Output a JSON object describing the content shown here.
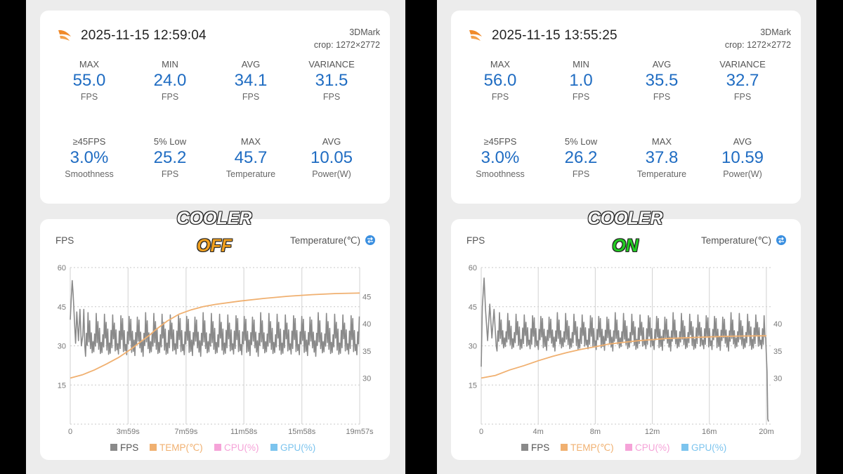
{
  "colors": {
    "value_blue": "#1f6cc2",
    "fps_line": "#8a8a8a",
    "temp_line": "#f0b070",
    "cpu": "#f5a3d8",
    "gpu": "#7cc4ee",
    "off": "#f0a020",
    "on": "#22cc22"
  },
  "panels": [
    {
      "timestamp": "2025-11-15 12:59:04",
      "source": "3DMark",
      "crop": "crop: 1272×2772",
      "stats": [
        {
          "label": "MAX",
          "value": "55.0",
          "unit": "FPS"
        },
        {
          "label": "MIN",
          "value": "24.0",
          "unit": "FPS"
        },
        {
          "label": "AVG",
          "value": "34.1",
          "unit": "FPS"
        },
        {
          "label": "VARIANCE",
          "value": "31.5",
          "unit": "FPS"
        },
        {
          "label": "≥45FPS",
          "value": "3.0%",
          "unit": "Smoothness"
        },
        {
          "label": "5% Low",
          "value": "25.2",
          "unit": "FPS"
        },
        {
          "label": "MAX",
          "value": "45.7",
          "unit": "Temperature"
        },
        {
          "label": "AVG",
          "value": "10.05",
          "unit": "Power(W)"
        }
      ],
      "overlay_title": "COOLER",
      "overlay_state": "OFF",
      "overlay_color": "#f0a020"
    },
    {
      "timestamp": "2025-11-15 13:55:25",
      "source": "3DMark",
      "crop": "crop: 1272×2772",
      "stats": [
        {
          "label": "MAX",
          "value": "56.0",
          "unit": "FPS"
        },
        {
          "label": "MIN",
          "value": "1.0",
          "unit": "FPS"
        },
        {
          "label": "AVG",
          "value": "35.5",
          "unit": "FPS"
        },
        {
          "label": "VARIANCE",
          "value": "32.7",
          "unit": "FPS"
        },
        {
          "label": "≥45FPS",
          "value": "3.0%",
          "unit": "Smoothness"
        },
        {
          "label": "5% Low",
          "value": "26.2",
          "unit": "FPS"
        },
        {
          "label": "MAX",
          "value": "37.8",
          "unit": "Temperature"
        },
        {
          "label": "AVG",
          "value": "10.59",
          "unit": "Power(W)"
        }
      ],
      "overlay_title": "COOLER",
      "overlay_state": "ON",
      "overlay_color": "#22cc22"
    }
  ],
  "chart_data": [
    {
      "type": "line",
      "title": "",
      "ylabel": "FPS",
      "y2label": "Temperature(℃)",
      "ylim": [
        0,
        60
      ],
      "yticks": [
        0,
        15,
        30,
        45,
        60
      ],
      "y2ticks": [
        30,
        35,
        40,
        45
      ],
      "y2lim": [
        21.5,
        50.4
      ],
      "xlim": [
        0,
        1197
      ],
      "xticks": [
        0,
        239,
        479,
        718,
        958,
        1197
      ],
      "xtick_labels": [
        "0",
        "3m59s",
        "7m59s",
        "11m58s",
        "15m58s",
        "19m57s"
      ],
      "legend": [
        "FPS",
        "TEMP(℃)",
        "CPU(%)",
        "GPU(%)"
      ],
      "series": [
        {
          "name": "FPS",
          "period": 34,
          "start_points": [
            [
              0,
              40
            ],
            [
              4,
              48
            ],
            [
              8,
              55
            ],
            [
              12,
              50
            ],
            [
              17,
              40
            ],
            [
              22,
              31
            ],
            [
              27,
              43
            ],
            [
              34,
              32
            ],
            [
              40,
              44
            ],
            [
              46,
              30
            ],
            [
              52,
              34
            ],
            [
              56,
              44
            ],
            [
              60,
              30
            ]
          ],
          "steady_low": 27,
          "steady_high": 42
        },
        {
          "name": "TEMP(℃)",
          "points": [
            [
              0,
              30
            ],
            [
              50,
              30.6
            ],
            [
              100,
              31.5
            ],
            [
              150,
              32.6
            ],
            [
              200,
              33.8
            ],
            [
              250,
              35.3
            ],
            [
              300,
              37
            ],
            [
              330,
              38
            ],
            [
              350,
              38.8
            ],
            [
              400,
              40.5
            ],
            [
              450,
              41.8
            ],
            [
              500,
              42.6
            ],
            [
              550,
              43.2
            ],
            [
              600,
              43.6
            ],
            [
              700,
              44.2
            ],
            [
              800,
              44.7
            ],
            [
              900,
              45.1
            ],
            [
              1000,
              45.4
            ],
            [
              1100,
              45.6
            ],
            [
              1197,
              45.7
            ]
          ]
        }
      ]
    },
    {
      "type": "line",
      "title": "",
      "ylabel": "FPS",
      "y2label": "Temperature(℃)",
      "ylim": [
        0,
        60
      ],
      "yticks": [
        0,
        15,
        30,
        45,
        60
      ],
      "y2ticks": [
        30,
        35,
        40
      ],
      "y2lim": [
        21.5,
        50.4
      ],
      "xlim": [
        0,
        20.3
      ],
      "xticks": [
        0,
        4,
        8,
        12,
        16,
        20
      ],
      "xtick_labels": [
        "0",
        "4m",
        "8m",
        "12m",
        "16m",
        "20m"
      ],
      "legend": [
        "FPS",
        "TEMP(℃)",
        "CPU(%)",
        "GPU(%)"
      ],
      "series": [
        {
          "name": "FPS",
          "period": 0.58,
          "start_points": [
            [
              0,
              22
            ],
            [
              0.08,
              45
            ],
            [
              0.2,
              56
            ],
            [
              0.3,
              44
            ],
            [
              0.45,
              32
            ],
            [
              0.6,
              46
            ],
            [
              0.75,
              33
            ],
            [
              0.9,
              44
            ],
            [
              1.05,
              30
            ]
          ],
          "steady_low": 29,
          "steady_high": 42,
          "end_points": [
            [
              19.95,
              33
            ],
            [
              20.05,
              20
            ],
            [
              20.1,
              2
            ],
            [
              20.15,
              1
            ]
          ]
        },
        {
          "name": "TEMP(℃)",
          "points": [
            [
              0,
              30
            ],
            [
              1,
              30.5
            ],
            [
              2,
              31.5
            ],
            [
              3,
              32.3
            ],
            [
              4,
              33.2
            ],
            [
              5,
              34
            ],
            [
              6,
              34.7
            ],
            [
              7,
              35.3
            ],
            [
              8,
              35.8
            ],
            [
              9,
              36.3
            ],
            [
              10,
              36.6
            ],
            [
              11,
              36.9
            ],
            [
              12,
              37.1
            ],
            [
              13,
              37.3
            ],
            [
              14,
              37.4
            ],
            [
              15,
              37.5
            ],
            [
              16,
              37.6
            ],
            [
              17,
              37.7
            ],
            [
              18,
              37.75
            ],
            [
              20,
              37.8
            ]
          ]
        }
      ]
    }
  ]
}
